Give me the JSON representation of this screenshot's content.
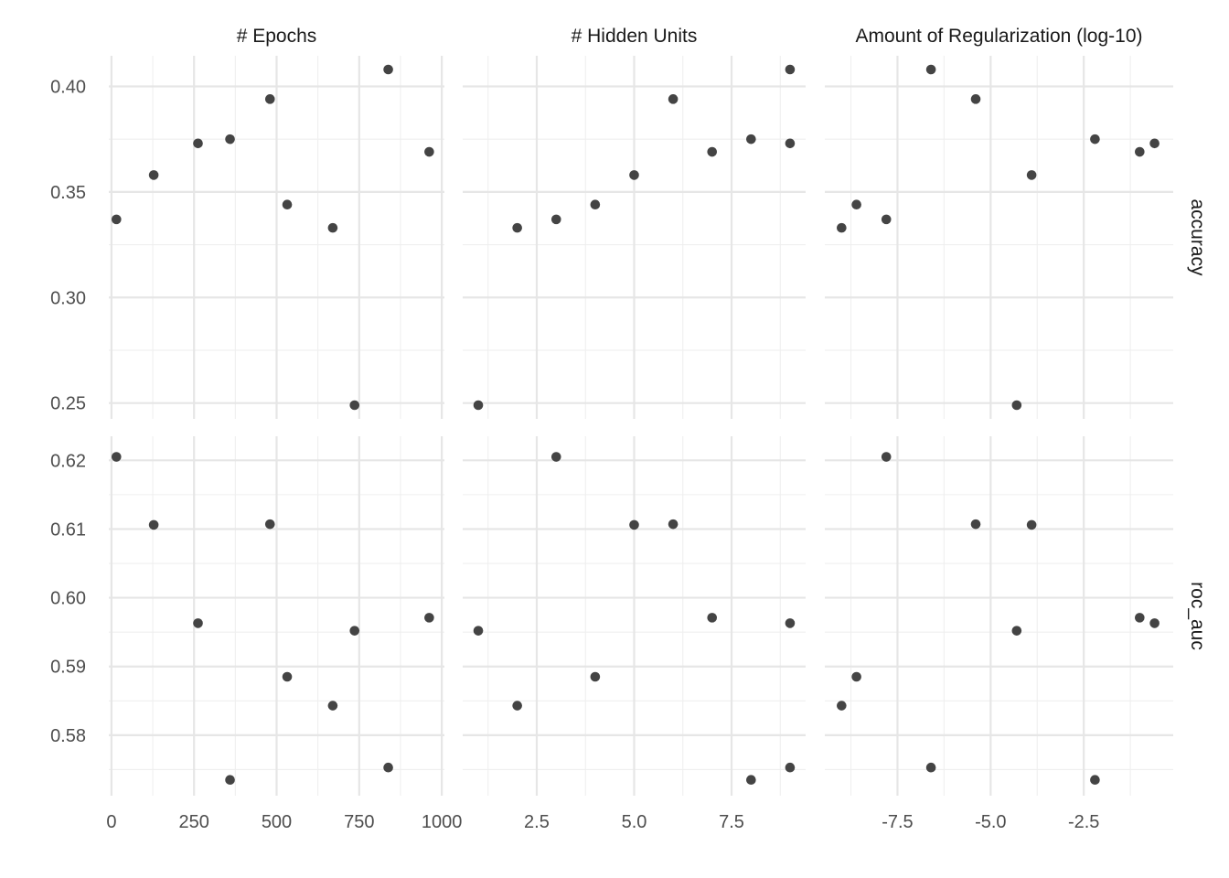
{
  "chart_data": {
    "type": "scatter",
    "title": "",
    "facets": {
      "columns": [
        "# Epochs",
        "# Hidden Units",
        "Amount of Regularization (log-10)"
      ],
      "rows": [
        "accuracy",
        "roc_auc"
      ]
    },
    "x_axes": [
      {
        "range": [
          -8,
          1008
        ],
        "ticks": [
          0,
          250,
          500,
          750,
          1000
        ],
        "tick_labels": [
          "0",
          "250",
          "500",
          "750",
          "1000"
        ],
        "minor": [
          125,
          375,
          625,
          875
        ]
      },
      {
        "range": [
          0.6,
          9.4
        ],
        "ticks": [
          2.5,
          5.0,
          7.5
        ],
        "tick_labels": [
          "2.5",
          "5.0",
          "7.5"
        ],
        "minor": [
          1.25,
          3.75,
          6.25,
          8.75
        ]
      },
      {
        "range": [
          -9.45,
          -0.1
        ],
        "ticks": [
          -7.5,
          -5.0,
          -2.5
        ],
        "tick_labels": [
          "-7.5",
          "-5.0",
          "-2.5"
        ],
        "minor": [
          -8.75,
          -6.25,
          -3.75,
          -1.25
        ]
      }
    ],
    "y_axes": [
      {
        "range": [
          0.2425,
          0.4145
        ],
        "ticks": [
          0.25,
          0.3,
          0.35,
          0.4
        ],
        "tick_labels": [
          "0.25",
          "0.30",
          "0.35",
          "0.40"
        ],
        "minor": [
          0.275,
          0.325,
          0.375
        ]
      },
      {
        "range": [
          0.5712,
          0.6235
        ],
        "ticks": [
          0.58,
          0.59,
          0.6,
          0.61,
          0.62
        ],
        "tick_labels": [
          "0.58",
          "0.59",
          "0.60",
          "0.61",
          "0.62"
        ],
        "minor": [
          0.575,
          0.585,
          0.595,
          0.605,
          0.615
        ]
      }
    ],
    "series": [
      {
        "epochs": 15,
        "hidden_units": 3,
        "regularization": -7.8,
        "accuracy": 0.337,
        "roc_auc": 0.6205
      },
      {
        "epochs": 128,
        "hidden_units": 5,
        "regularization": -3.9,
        "accuracy": 0.358,
        "roc_auc": 0.6106
      },
      {
        "epochs": 262,
        "hidden_units": 9,
        "regularization": -0.6,
        "accuracy": 0.373,
        "roc_auc": 0.5963
      },
      {
        "epochs": 359,
        "hidden_units": 8,
        "regularization": -2.2,
        "accuracy": 0.375,
        "roc_auc": 0.5735
      },
      {
        "epochs": 480,
        "hidden_units": 6,
        "regularization": -5.4,
        "accuracy": 0.394,
        "roc_auc": 0.6107
      },
      {
        "epochs": 532,
        "hidden_units": 4,
        "regularization": -8.6,
        "accuracy": 0.344,
        "roc_auc": 0.5885
      },
      {
        "epochs": 670,
        "hidden_units": 2,
        "regularization": -9.0,
        "accuracy": 0.333,
        "roc_auc": 0.5843
      },
      {
        "epochs": 736,
        "hidden_units": 1,
        "regularization": -4.3,
        "accuracy": 0.249,
        "roc_auc": 0.5952
      },
      {
        "epochs": 838,
        "hidden_units": 9,
        "regularization": -6.6,
        "accuracy": 0.408,
        "roc_auc": 0.5753
      },
      {
        "epochs": 962,
        "hidden_units": 7,
        "regularization": -1.0,
        "accuracy": 0.369,
        "roc_auc": 0.5971
      }
    ],
    "series_keys": [
      "epochs",
      "hidden_units",
      "regularization"
    ],
    "row_keys": [
      "accuracy",
      "roc_auc"
    ],
    "grid": true,
    "colors": {
      "point": "#3a3a3a",
      "grid_major": "#e6e6e6",
      "grid_minor": "#efefef"
    }
  }
}
